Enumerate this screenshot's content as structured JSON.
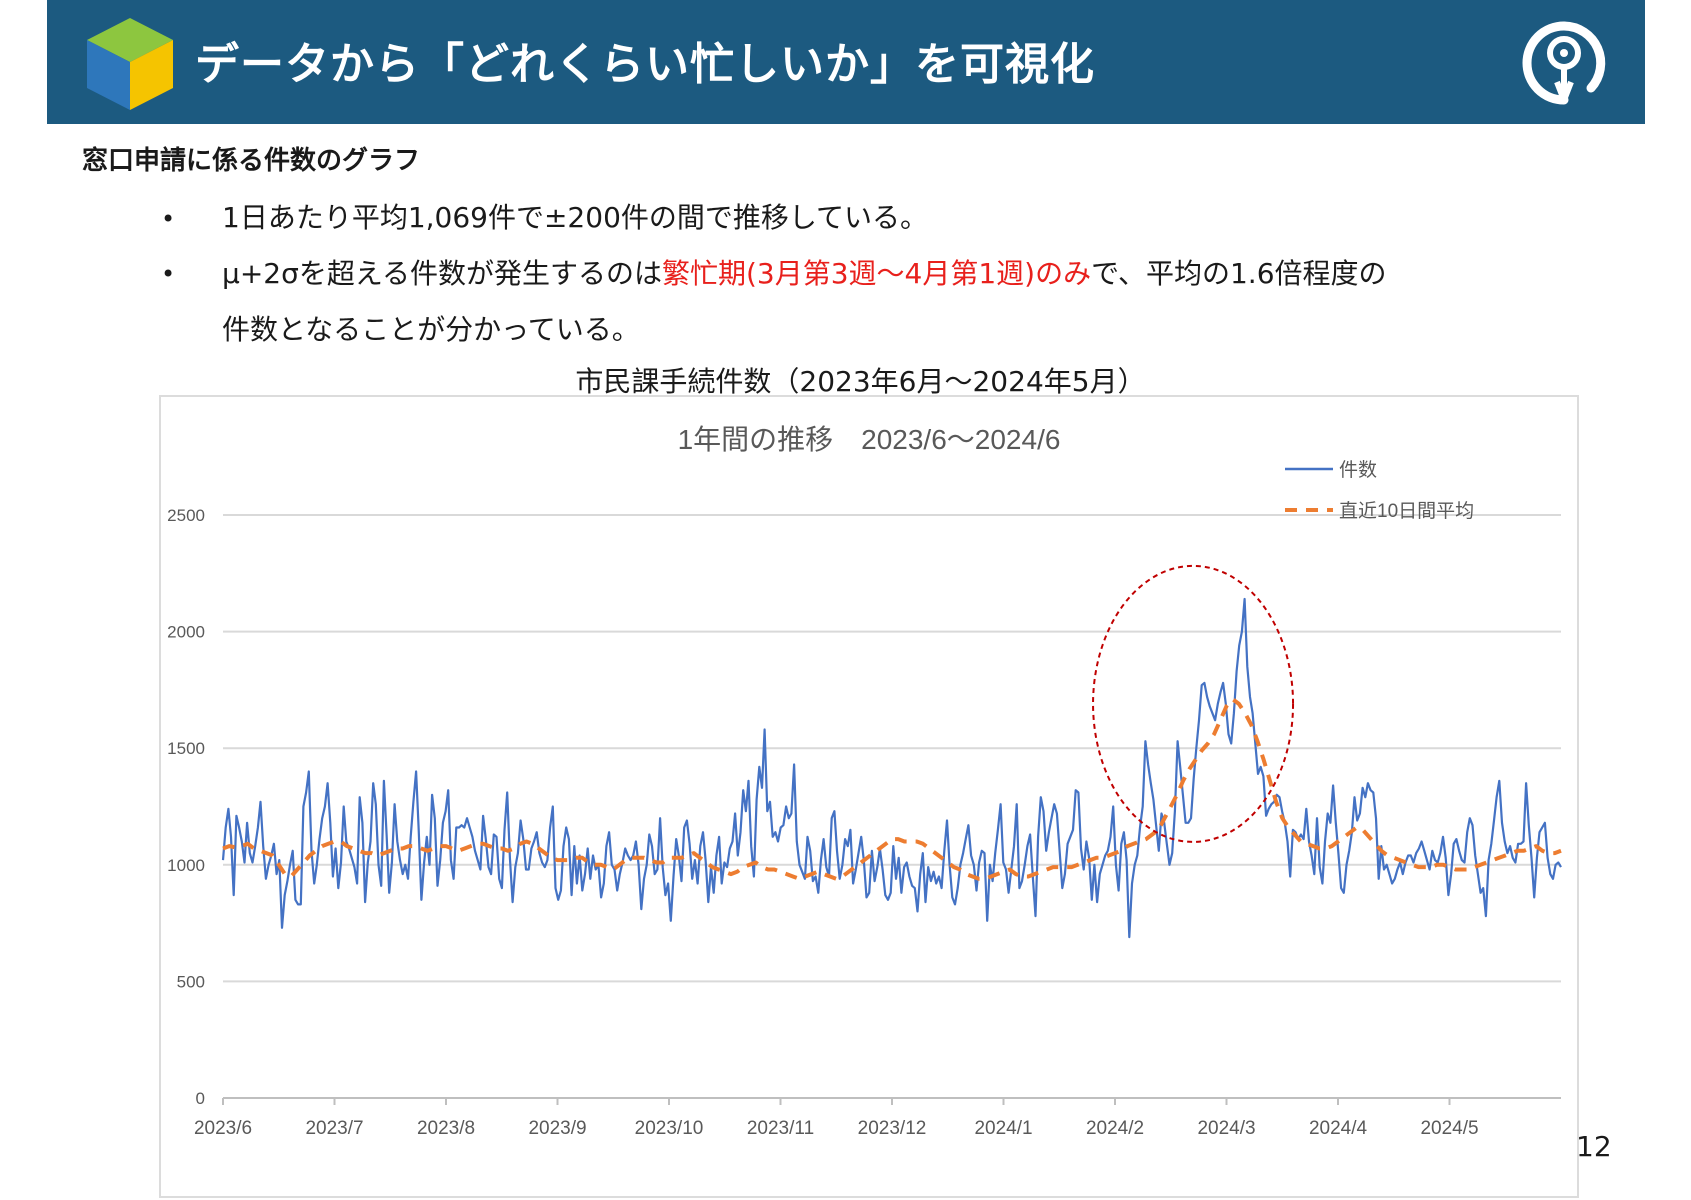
{
  "header": {
    "title": "データから「どれくらい忙しいか」を可視化",
    "cube_colors": {
      "top": "#8dc63f",
      "left": "#2e77bb",
      "right": "#f5c400"
    },
    "logo_icon": "city-emblem-icon",
    "bg_color": "#1c5a80"
  },
  "section_title": "窓口申請に係る件数のグラフ",
  "bullets": {
    "b1": "1日あたり平均1,069件で±200件の間で推移している。",
    "b2_pre": "μ+2σを超える件数が発生するのは",
    "b2_red": "繁忙期(3月第3週～4月第1週)のみ",
    "b2_post": "で、平均の1.6倍程度の",
    "b2_line2": "件数となることが分かっている。",
    "dot": "•"
  },
  "chart_caption": "市民課手続件数（2023年6月～2024年5月）",
  "page_number": "12",
  "chart_data": {
    "type": "line",
    "title": "1年間の推移　2023/6～2024/6",
    "xlabel": "",
    "ylabel": "",
    "ylim": [
      0,
      2500
    ],
    "yticks": [
      0,
      500,
      1000,
      1500,
      2000,
      2500
    ],
    "x_tick_labels": [
      "2023/6",
      "2023/7",
      "2023/8",
      "2023/9",
      "2023/10",
      "2023/11",
      "2023/12",
      "2024/1",
      "2024/2",
      "2024/3",
      "2024/4",
      "2024/5"
    ],
    "grid": "horizontal",
    "legend_position": "top-right",
    "highlight": "red dashed ellipse around 2024/2–2024/3 peak",
    "series": [
      {
        "name": "件数",
        "color": "#4472c4",
        "style": "solid",
        "values": [
          1020,
          1160,
          1240,
          1120,
          870,
          1210,
          1160,
          1100,
          1010,
          1180,
          1050,
          1010,
          1080,
          1160,
          1270,
          1080,
          940,
          1000,
          1040,
          1090,
          960,
          1020,
          730,
          870,
          930,
          1000,
          1060,
          850,
          830,
          830,
          1250,
          1310,
          1400,
          1060,
          920,
          1000,
          1110,
          1200,
          1250,
          1350,
          1180,
          950,
          1070,
          900,
          1010,
          1250,
          1100,
          1070,
          1030,
          990,
          920,
          1290,
          1180,
          840,
          1010,
          1100,
          1350,
          1260,
          1000,
          910,
          1360,
          1130,
          880,
          1010,
          1260,
          1100,
          1020,
          960,
          1000,
          940,
          1120,
          1270,
          1400,
          1150,
          850,
          1010,
          1120,
          1000,
          1300,
          1200,
          910,
          1020,
          1180,
          1230,
          1320,
          1020,
          940,
          1160,
          1160,
          1170,
          1160,
          1200,
          1160,
          1120,
          1060,
          1020,
          980,
          1210,
          1110,
          990,
          960,
          1130,
          1120,
          940,
          900,
          1150,
          1310,
          1030,
          840,
          990,
          1050,
          1190,
          1110,
          980,
          980,
          1070,
          1100,
          1140,
          1050,
          1010,
          990,
          1020,
          1160,
          1250,
          900,
          850,
          890,
          1080,
          1160,
          1110,
          870,
          1080,
          920,
          1040,
          890,
          960,
          1070,
          940,
          1040,
          980,
          1000,
          860,
          920,
          1080,
          1140,
          1000,
          980,
          890,
          960,
          1010,
          1070,
          1040,
          1020,
          1040,
          1100,
          1000,
          810,
          940,
          1000,
          1130,
          1080,
          960,
          980,
          1200,
          990,
          870,
          920,
          760,
          950,
          1110,
          1040,
          930,
          1160,
          1190,
          1090,
          940,
          1020,
          920,
          1080,
          1140,
          1020,
          840,
          990,
          880,
          1040,
          1120,
          920,
          1010,
          990,
          1070,
          1100,
          1220,
          1040,
          1140,
          1320,
          1230,
          1360,
          1080,
          950,
          1280,
          1420,
          1330,
          1580,
          1230,
          1270,
          1120,
          1140,
          1100,
          1160,
          1170,
          1250,
          1200,
          1220,
          1430,
          1100,
          1000,
          970,
          940,
          1120,
          1060,
          930,
          950,
          880,
          1020,
          1110,
          990,
          950,
          1200,
          1230,
          1060,
          940,
          1000,
          1110,
          1080,
          1150,
          920,
          980,
          1050,
          1120,
          1020,
          860,
          880,
          1060,
          930,
          990,
          1070,
          980,
          870,
          850,
          880,
          1080,
          940,
          1030,
          880,
          990,
          1010,
          950,
          910,
          900,
          800,
          960,
          1050,
          840,
          990,
          930,
          970,
          920,
          950,
          900,
          1060,
          1190,
          1000,
          860,
          830,
          900,
          1000,
          1050,
          1110,
          1170,
          1040,
          1000,
          890,
          1010,
          1060,
          1050,
          760,
          1000,
          930,
          1050,
          1150,
          1260,
          1010,
          980,
          880,
          980,
          1080,
          1260,
          900,
          930,
          1000,
          1080,
          1130,
          950,
          780,
          1120,
          1290,
          1230,
          1060,
          1140,
          1200,
          1260,
          1220,
          1060,
          900,
          960,
          1090,
          1120,
          1150,
          1320,
          1310,
          1070,
          980,
          1100,
          1030,
          850,
          1000,
          840,
          960,
          1000,
          1040,
          1060,
          1120,
          1250,
          1000,
          890,
          1090,
          1140,
          1020,
          690,
          920,
          1000,
          1040,
          1160,
          1250,
          1530,
          1430,
          1350,
          1280,
          1170,
          1060,
          1220,
          1180,
          1090,
          1000,
          1050,
          1230,
          1530,
          1420,
          1300,
          1180,
          1180,
          1200,
          1370,
          1500,
          1620,
          1770,
          1780,
          1720,
          1680,
          1650,
          1620,
          1690,
          1740,
          1780,
          1690,
          1560,
          1520,
          1650,
          1830,
          1940,
          2000,
          2140,
          1850,
          1720,
          1650,
          1520,
          1390,
          1420,
          1380,
          1210,
          1240,
          1260,
          1270,
          1300,
          1290,
          1230,
          1180,
          1100,
          950,
          1150,
          1140,
          1110,
          1130,
          1110,
          1240,
          1100,
          1040,
          960,
          1200,
          990,
          920,
          1100,
          1220,
          1180,
          1340,
          1180,
          1050,
          900,
          880,
          1000,
          1060,
          1140,
          1290,
          1190,
          1220,
          1330,
          1290,
          1350,
          1320,
          1310,
          1200,
          940,
          1080,
          980,
          1000,
          960,
          920,
          940,
          980,
          1010,
          960,
          1010,
          1040,
          1040,
          1010,
          1050,
          1070,
          1100,
          1060,
          1020,
          980,
          1060,
          1020,
          1010,
          1050,
          1120,
          1030,
          870,
          960,
          1090,
          1110,
          1060,
          1020,
          1010,
          1140,
          1200,
          1170,
          1040,
          960,
          880,
          900,
          780,
          1020,
          1090,
          1190,
          1290,
          1360,
          1180,
          1100,
          1050,
          1080,
          1030,
          1010,
          1090,
          1090,
          1100,
          1350,
          1170,
          1030,
          860,
          1030,
          1140,
          1160,
          1180,
          1030,
          960,
          940,
          1000,
          1010,
          990
        ]
      },
      {
        "name": "直近10日間平均",
        "color": "#ed7d31",
        "style": "dashed",
        "values": [
          1070,
          1080,
          1075,
          1080,
          1090,
          1070,
          1060,
          1050,
          1040,
          1000,
          960,
          950,
          980,
          1010,
          1040,
          1060,
          1080,
          1090,
          1100,
          1100,
          1080,
          1070,
          1060,
          1050,
          1050,
          1040,
          1050,
          1060,
          1070,
          1070,
          1080,
          1080,
          1070,
          1060,
          1070,
          1080,
          1080,
          1070,
          1060,
          1070,
          1080,
          1090,
          1090,
          1080,
          1070,
          1070,
          1060,
          1070,
          1090,
          1100,
          1090,
          1070,
          1050,
          1030,
          1020,
          1020,
          1020,
          1030,
          1030,
          1010,
          1000,
          1000,
          990,
          980,
          1000,
          1020,
          1030,
          1030,
          1030,
          1020,
          1010,
          1010,
          1030,
          1030,
          1030,
          1040,
          1050,
          1030,
          1010,
          990,
          980,
          970,
          960,
          970,
          990,
          1000,
          1010,
          990,
          980,
          980,
          970,
          960,
          950,
          940,
          950,
          960,
          970,
          960,
          950,
          940,
          950,
          970,
          990,
          1010,
          1030,
          1050,
          1070,
          1090,
          1110,
          1110,
          1100,
          1100,
          1100,
          1090,
          1070,
          1050,
          1030,
          1010,
          990,
          980,
          960,
          950,
          940,
          940,
          950,
          960,
          970,
          980,
          960,
          950,
          950,
          960,
          970,
          980,
          990,
          990,
          990,
          990,
          1000,
          1010,
          1020,
          1030,
          1030,
          1040,
          1050,
          1060,
          1080,
          1090,
          1100,
          1110,
          1130,
          1150,
          1200,
          1250,
          1300,
          1360,
          1410,
          1450,
          1490,
          1520,
          1560,
          1620,
          1680,
          1710,
          1690,
          1650,
          1600,
          1530,
          1450,
          1360,
          1270,
          1200,
          1160,
          1130,
          1100,
          1090,
          1080,
          1070,
          1070,
          1080,
          1100,
          1120,
          1140,
          1160,
          1150,
          1120,
          1090,
          1060,
          1040,
          1030,
          1020,
          1010,
          1000,
          990,
          990,
          990,
          1000,
          1000,
          990,
          980,
          980,
          980,
          990,
          1000,
          1010,
          1020,
          1030,
          1040,
          1050,
          1060,
          1060,
          1070,
          1080,
          1060,
          1050,
          1050,
          1060
        ]
      }
    ]
  }
}
